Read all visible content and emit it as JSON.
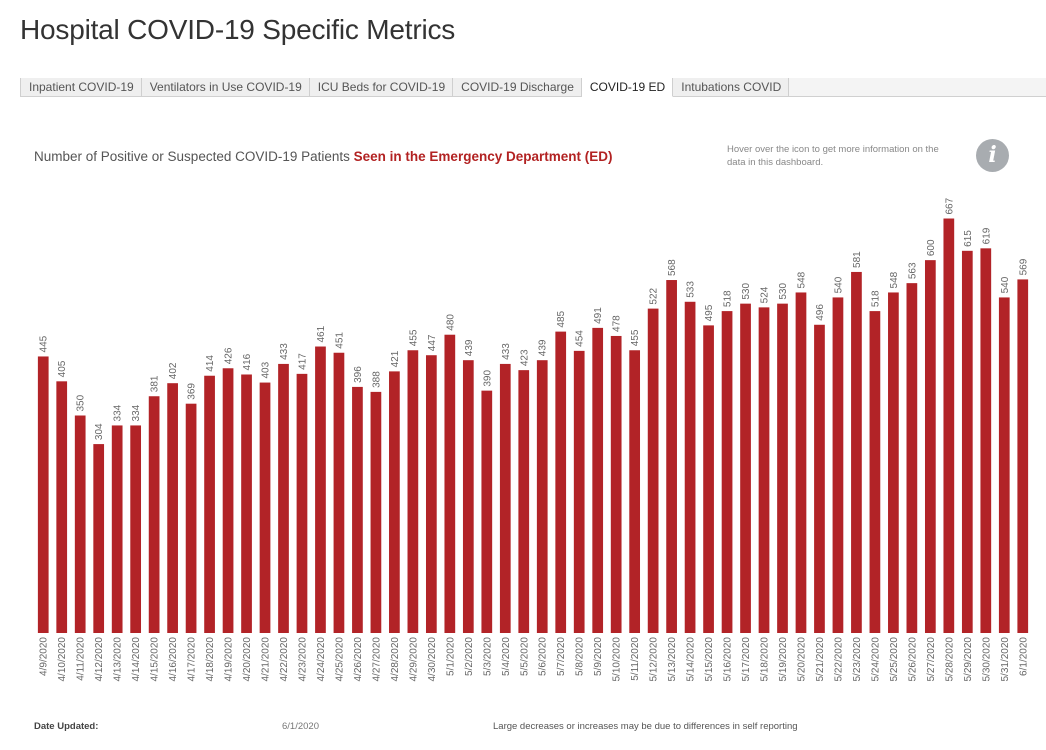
{
  "title": "Hospital COVID-19 Specific Metrics",
  "tabs": [
    {
      "label": "Inpatient COVID-19",
      "active": false
    },
    {
      "label": "Ventilators in Use COVID-19",
      "active": false
    },
    {
      "label": "ICU Beds for COVID-19",
      "active": false
    },
    {
      "label": "COVID-19 Discharge",
      "active": false
    },
    {
      "label": "COVID-19 ED",
      "active": true
    },
    {
      "label": "Intubations COVID",
      "active": false
    }
  ],
  "subtitle": {
    "prefix": "Number of Positive or Suspected COVID-19 Patients ",
    "highlight": "Seen in the Emergency Department (ED)"
  },
  "info": {
    "text": "Hover over the icon to get more information on the data in this dashboard.",
    "icon": "info-icon",
    "glyph": "i"
  },
  "footer": {
    "label": "Date Updated:",
    "date": "6/1/2020",
    "note": "Large decreases or increases may be due to differences in self reporting"
  },
  "colors": {
    "bar": "#b22327",
    "highlight": "#b22222"
  },
  "chart_data": {
    "type": "bar",
    "ylim": [
      0,
      700
    ],
    "categories": [
      "4/9/2020",
      "4/10/2020",
      "4/11/2020",
      "4/12/2020",
      "4/13/2020",
      "4/14/2020",
      "4/15/2020",
      "4/16/2020",
      "4/17/2020",
      "4/18/2020",
      "4/19/2020",
      "4/20/2020",
      "4/21/2020",
      "4/22/2020",
      "4/23/2020",
      "4/24/2020",
      "4/25/2020",
      "4/26/2020",
      "4/27/2020",
      "4/28/2020",
      "4/29/2020",
      "4/30/2020",
      "5/1/2020",
      "5/2/2020",
      "5/3/2020",
      "5/4/2020",
      "5/5/2020",
      "5/6/2020",
      "5/7/2020",
      "5/8/2020",
      "5/9/2020",
      "5/10/2020",
      "5/11/2020",
      "5/12/2020",
      "5/13/2020",
      "5/14/2020",
      "5/15/2020",
      "5/16/2020",
      "5/17/2020",
      "5/18/2020",
      "5/19/2020",
      "5/20/2020",
      "5/21/2020",
      "5/22/2020",
      "5/23/2020",
      "5/24/2020",
      "5/25/2020",
      "5/26/2020",
      "5/27/2020",
      "5/28/2020",
      "5/29/2020",
      "5/30/2020",
      "5/31/2020",
      "6/1/2020"
    ],
    "values": [
      445,
      405,
      350,
      304,
      334,
      334,
      381,
      402,
      369,
      414,
      426,
      416,
      403,
      433,
      417,
      461,
      451,
      396,
      388,
      421,
      455,
      447,
      480,
      439,
      390,
      433,
      423,
      439,
      485,
      454,
      491,
      478,
      455,
      522,
      568,
      533,
      495,
      518,
      530,
      524,
      530,
      548,
      496,
      540,
      581,
      518,
      548,
      563,
      600,
      667,
      615,
      619,
      540,
      569
    ]
  }
}
